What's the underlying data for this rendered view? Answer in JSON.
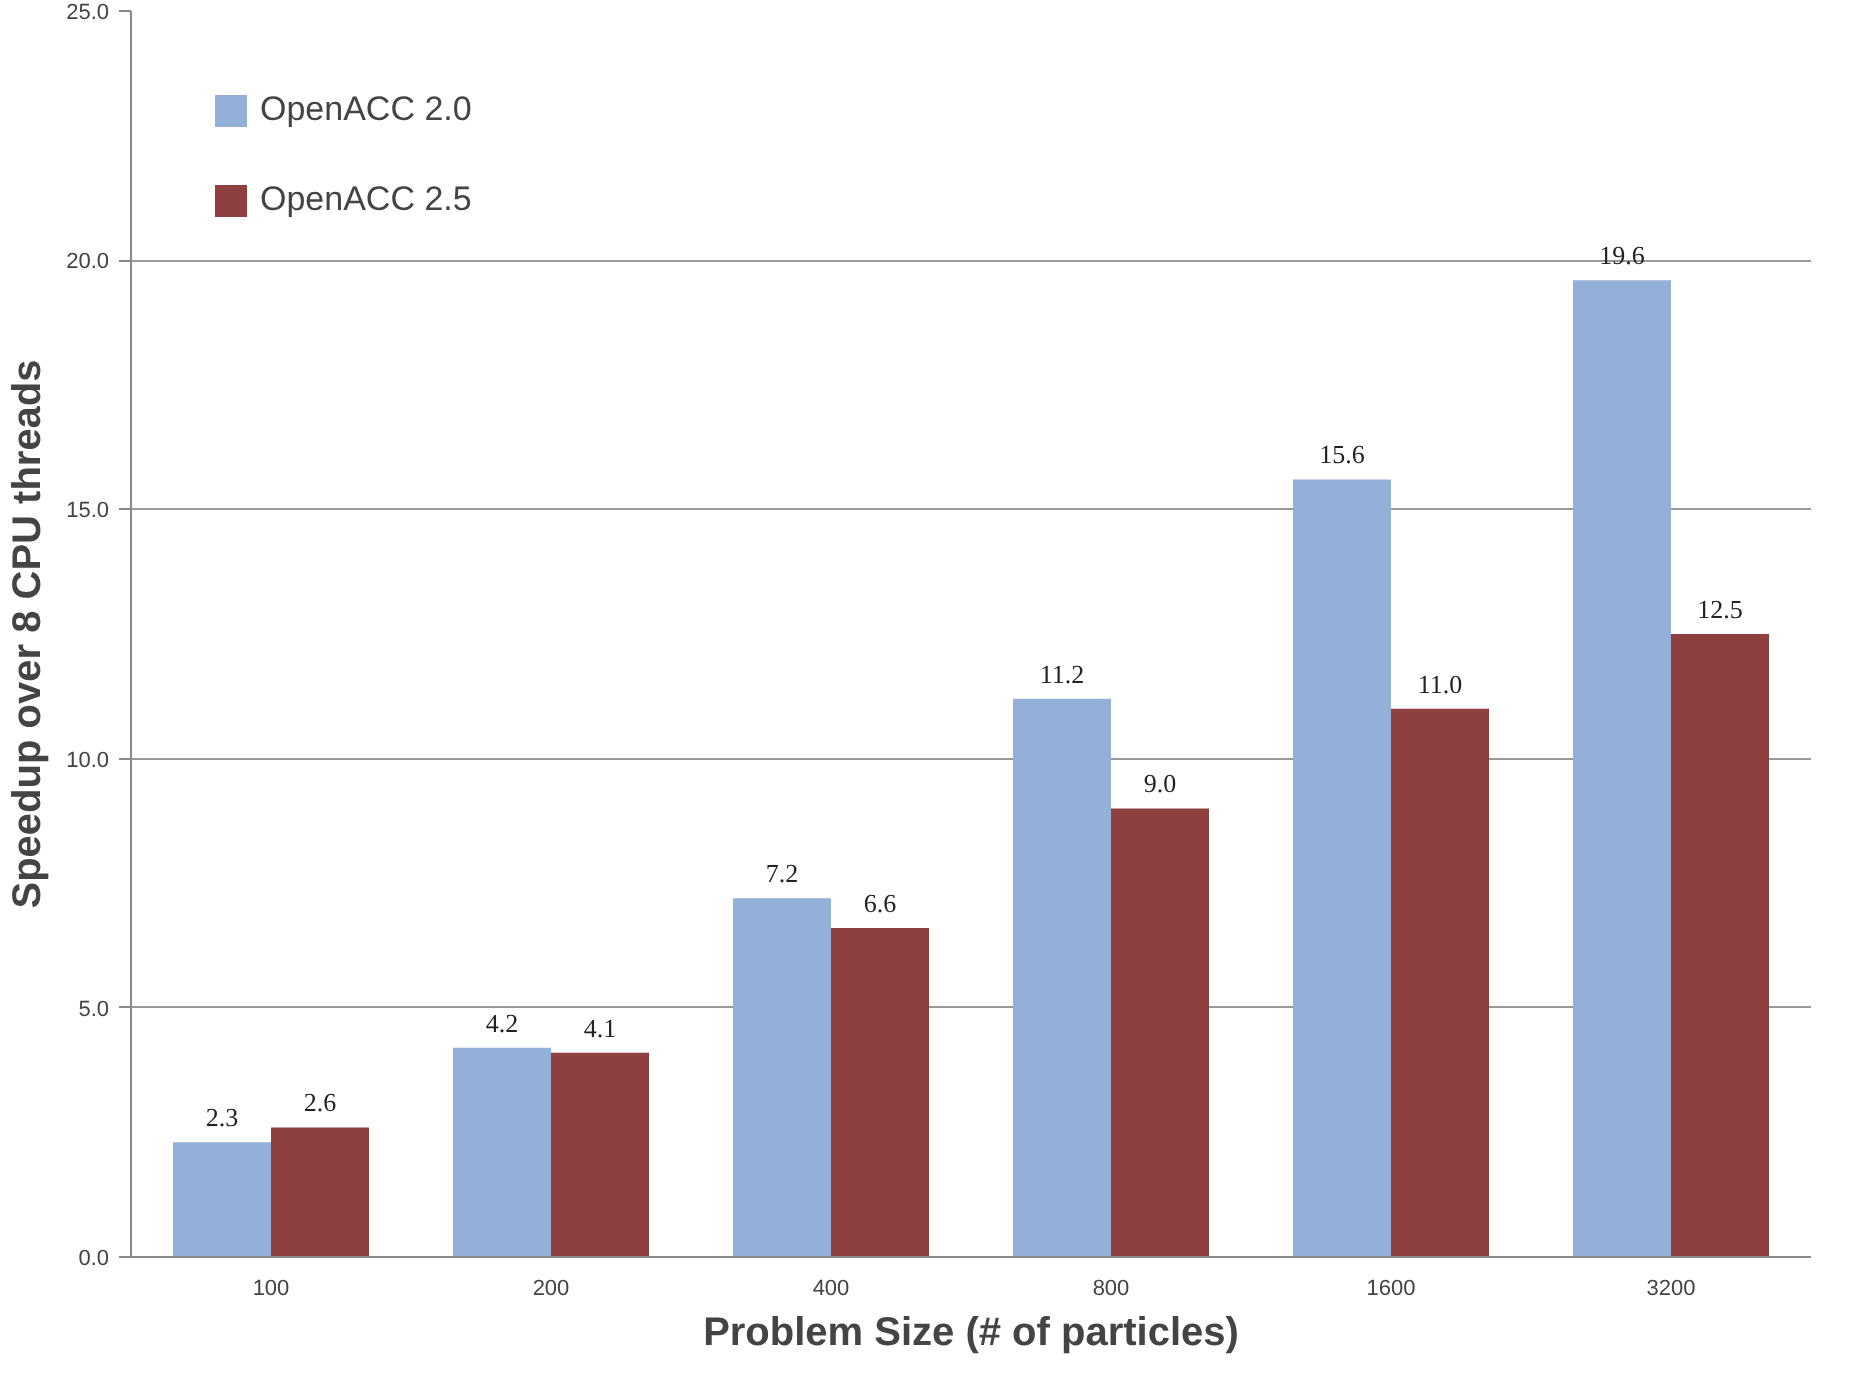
{
  "chart_data": {
    "type": "bar",
    "xlabel": "Problem Size (# of particles)",
    "ylabel": "Speedup over 8 CPU threads",
    "categories": [
      "100",
      "200",
      "400",
      "800",
      "1600",
      "3200"
    ],
    "series": [
      {
        "name": "OpenACC 2.0",
        "color": "#93b1d8",
        "values": [
          2.3,
          4.2,
          7.2,
          11.2,
          15.6,
          19.6
        ],
        "value_labels": [
          "2.3",
          "4.2",
          "7.2",
          "11.2",
          "15.6",
          "19.6"
        ]
      },
      {
        "name": "OpenACC 2.5",
        "color": "#8e3f3f",
        "values": [
          2.6,
          4.1,
          6.6,
          9.0,
          11.0,
          12.5
        ],
        "value_labels": [
          "2.6",
          "4.1",
          "6.6",
          "9.0",
          "11.0",
          "12.5"
        ]
      }
    ],
    "ylim": [
      0,
      25
    ],
    "yticks": [
      {
        "value": 0,
        "label": "0.0"
      },
      {
        "value": 5,
        "label": "5.0"
      },
      {
        "value": 10,
        "label": "10.0"
      },
      {
        "value": 15,
        "label": "15.0"
      },
      {
        "value": 20,
        "label": "20.0"
      },
      {
        "value": 25,
        "label": "25.0"
      }
    ],
    "grid": "y",
    "legend": "top left"
  }
}
